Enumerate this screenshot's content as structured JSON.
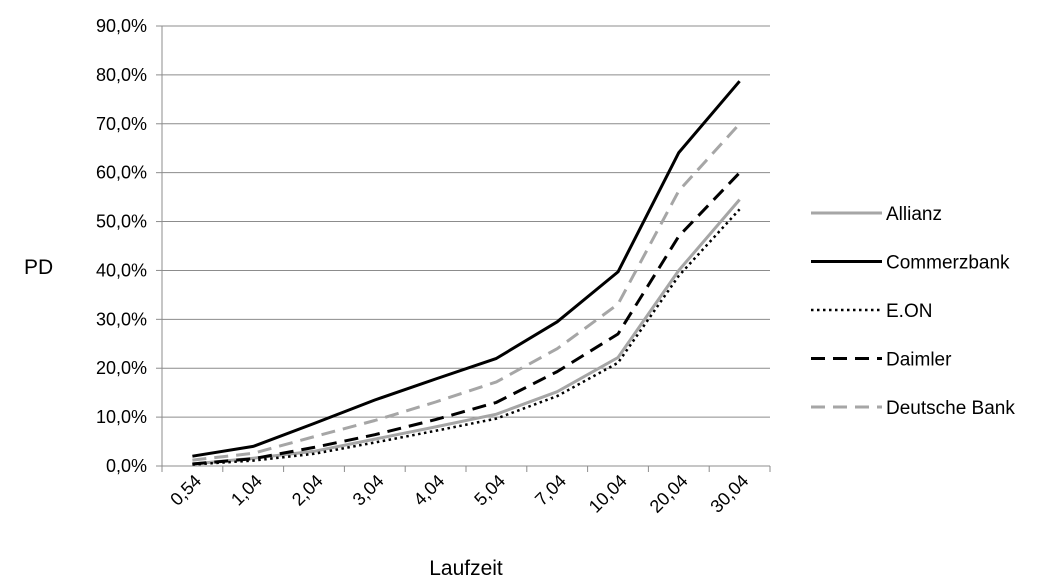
{
  "chart_data": {
    "type": "line",
    "title": "",
    "xlabel": "Laufzeit",
    "ylabel": "PD",
    "categories": [
      "0,54",
      "1,04",
      "2,04",
      "3,04",
      "4,04",
      "5,04",
      "7,04",
      "10,04",
      "20,04",
      "30,04"
    ],
    "ylim": [
      0,
      0.9
    ],
    "yticks": [
      "0,0%",
      "10,0%",
      "20,0%",
      "30,0%",
      "40,0%",
      "50,0%",
      "60,0%",
      "70,0%",
      "80,0%",
      "90,0%"
    ],
    "grid": "horizontal",
    "legend_position": "right",
    "series": [
      {
        "name": "Allianz",
        "color": "#a6a6a6",
        "style": "solid",
        "values": [
          0.004,
          0.016,
          0.03,
          0.055,
          0.08,
          0.106,
          0.152,
          0.222,
          0.4,
          0.545
        ]
      },
      {
        "name": "Commerzbank",
        "color": "#000000",
        "style": "solid",
        "values": [
          0.02,
          0.04,
          0.087,
          0.135,
          0.178,
          0.22,
          0.295,
          0.397,
          0.641,
          0.787
        ]
      },
      {
        "name": "E.ON",
        "color": "#000000",
        "style": "dotted",
        "values": [
          0.003,
          0.011,
          0.025,
          0.048,
          0.072,
          0.097,
          0.143,
          0.211,
          0.389,
          0.525
        ]
      },
      {
        "name": "Daimler",
        "color": "#000000",
        "style": "dashed",
        "values": [
          0.004,
          0.015,
          0.038,
          0.064,
          0.095,
          0.13,
          0.193,
          0.27,
          0.47,
          0.6
        ]
      },
      {
        "name": "Deutsche Bank",
        "color": "#a6a6a6",
        "style": "dashed",
        "values": [
          0.012,
          0.026,
          0.06,
          0.093,
          0.131,
          0.172,
          0.24,
          0.331,
          0.563,
          0.7
        ]
      }
    ]
  }
}
